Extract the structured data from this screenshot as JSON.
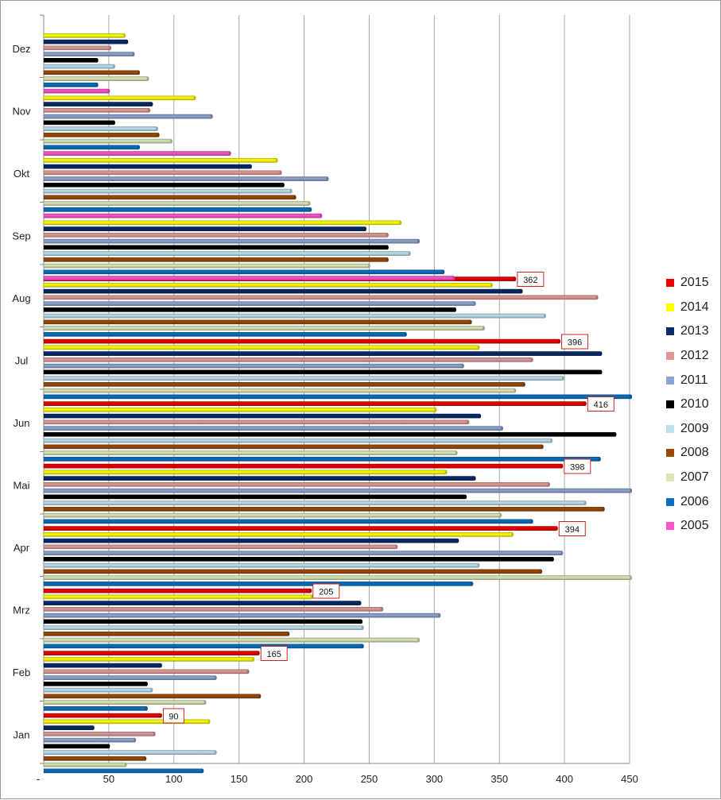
{
  "chart_data": {
    "type": "bar",
    "orientation": "horizontal",
    "categories": [
      "Jan",
      "Feb",
      "Mrz",
      "Apr",
      "Mai",
      "Jun",
      "Jul",
      "Aug",
      "Sep",
      "Okt",
      "Nov",
      "Dez"
    ],
    "x_ticks": [
      "-",
      "50",
      "100",
      "150",
      "200",
      "250",
      "300",
      "350",
      "400",
      "450"
    ],
    "xlim": [
      0,
      450
    ],
    "grid": "vertical",
    "legend_position": "right",
    "series": [
      {
        "name": "2005",
        "color": "#ff55cc",
        "values": [
          null,
          null,
          null,
          null,
          null,
          null,
          null,
          null,
          315,
          213,
          143,
          50
        ]
      },
      {
        "name": "2006",
        "color": "#0a6fc0",
        "values": [
          122,
          79,
          245,
          329,
          375,
          427,
          451,
          278,
          307,
          205,
          73,
          41
        ]
      },
      {
        "name": "2007",
        "color": "#d8e8b8",
        "values": [
          63,
          124,
          288,
          451,
          351,
          317,
          362,
          338,
          250,
          204,
          98,
          80
        ]
      },
      {
        "name": "2008",
        "color": "#9a4a08",
        "values": [
          78,
          166,
          188,
          382,
          430,
          383,
          369,
          328,
          264,
          193,
          88,
          73
        ]
      },
      {
        "name": "2009",
        "color": "#bde0ef",
        "values": [
          132,
          83,
          245,
          334,
          416,
          390,
          399,
          385,
          281,
          190,
          87,
          54
        ]
      },
      {
        "name": "2010",
        "color": "#000000",
        "values": [
          50,
          79,
          244,
          391,
          324,
          439,
          428,
          316,
          264,
          184,
          54,
          41
        ]
      },
      {
        "name": "2011",
        "color": "#8ea4d0",
        "values": [
          70,
          132,
          304,
          398,
          452,
          352,
          322,
          331,
          288,
          218,
          129,
          69
        ]
      },
      {
        "name": "2012",
        "color": "#e09a98",
        "values": [
          85,
          157,
          260,
          271,
          388,
          326,
          375,
          425,
          264,
          182,
          81,
          51
        ]
      },
      {
        "name": "2013",
        "color": "#0a2a6a",
        "values": [
          38,
          90,
          243,
          318,
          331,
          335,
          428,
          367,
          247,
          159,
          83,
          64
        ]
      },
      {
        "name": "2014",
        "color": "#ffff00",
        "values": [
          127,
          161,
          206,
          360,
          309,
          301,
          334,
          344,
          274,
          179,
          116,
          62
        ]
      },
      {
        "name": "2015",
        "color": "#ee0000",
        "values": [
          90,
          165,
          205,
          394,
          398,
          416,
          396,
          362,
          null,
          null,
          null,
          null
        ]
      }
    ],
    "data_labels": [
      {
        "category": "Jan",
        "series": "2015",
        "text": "90"
      },
      {
        "category": "Feb",
        "series": "2015",
        "text": "165"
      },
      {
        "category": "Mrz",
        "series": "2015",
        "text": "205"
      },
      {
        "category": "Apr",
        "series": "2015",
        "text": "394"
      },
      {
        "category": "Mai",
        "series": "2015",
        "text": "398"
      },
      {
        "category": "Jun",
        "series": "2015",
        "text": "416"
      },
      {
        "category": "Jul",
        "series": "2015",
        "text": "396"
      },
      {
        "category": "Aug",
        "series": "2015",
        "text": "362"
      }
    ],
    "legend": [
      "2015",
      "2014",
      "2013",
      "2012",
      "2011",
      "2010",
      "2009",
      "2008",
      "2007",
      "2006",
      "2005"
    ]
  }
}
